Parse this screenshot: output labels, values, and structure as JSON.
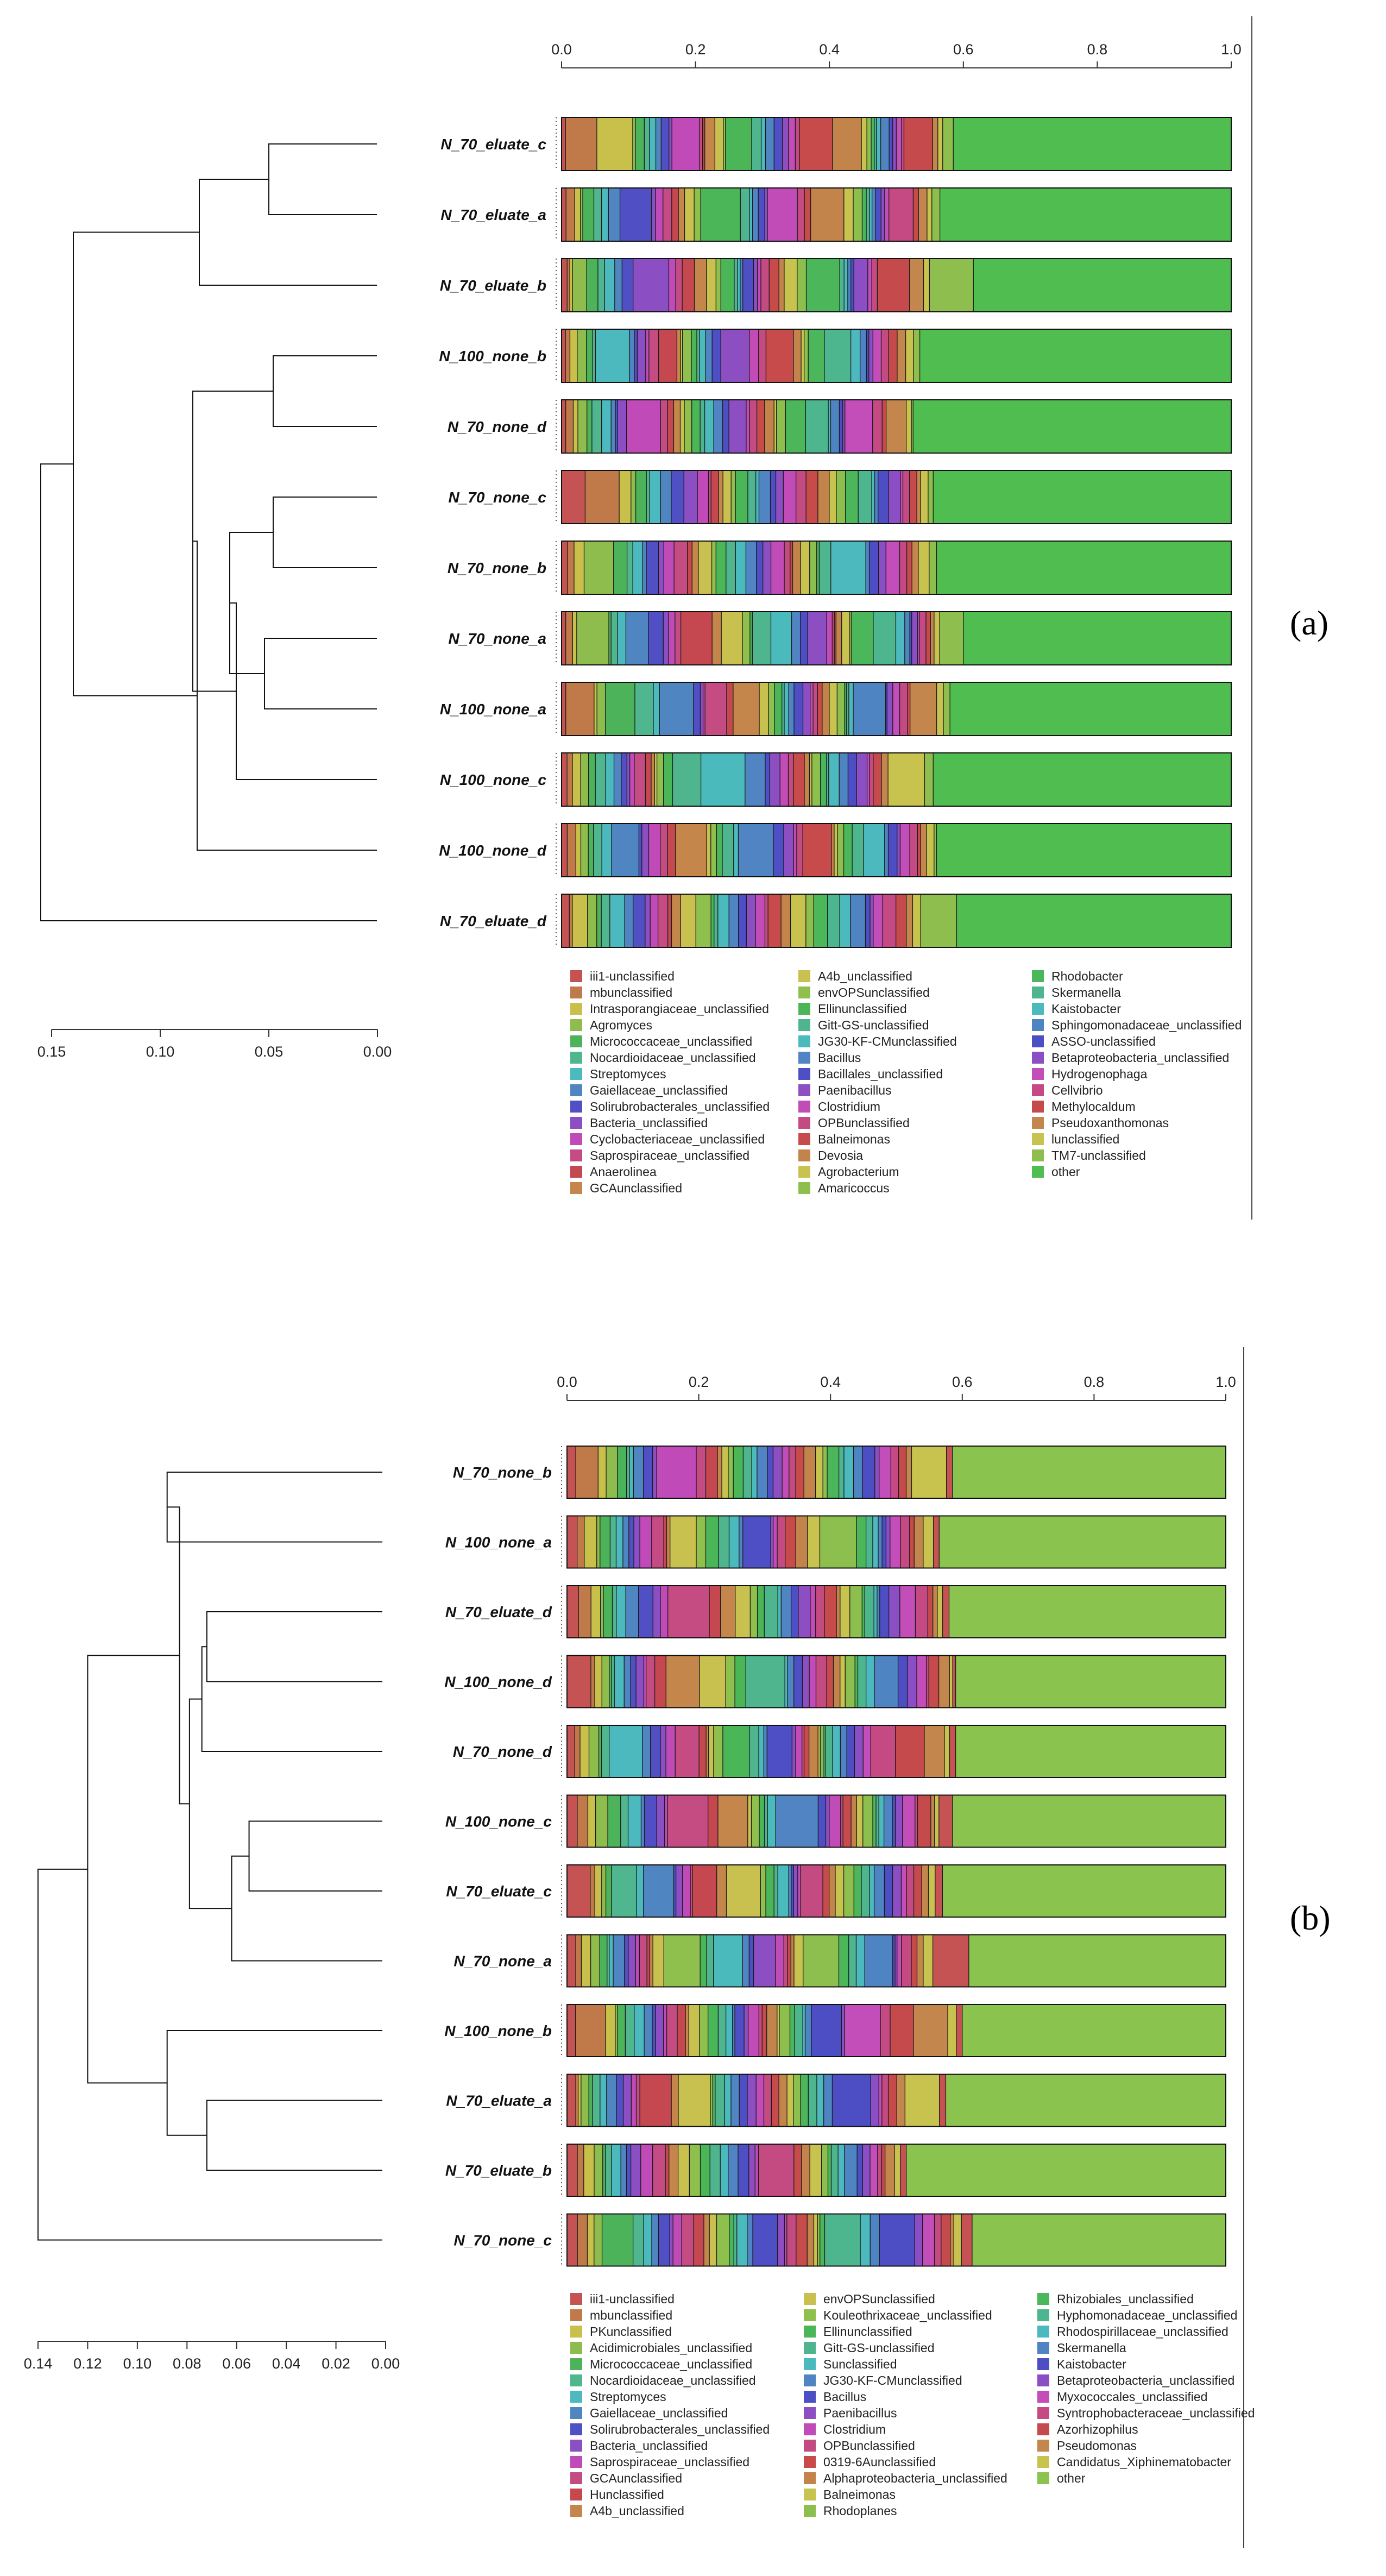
{
  "chart_data": [
    {
      "panel_label": "(a)",
      "type": "stacked-bar-with-dendrogram",
      "x_axis": {
        "range": [
          0,
          1
        ],
        "ticks": [
          "0.0",
          "0.2",
          "0.4",
          "0.6",
          "0.8",
          "1.0"
        ]
      },
      "dendrogram_axis": {
        "range": [
          0,
          0.155
        ],
        "ticks": [
          "0.15",
          "0.10",
          "0.05",
          "0.00"
        ]
      },
      "samples": [
        "N_70_eluate_c",
        "N_70_eluate_a",
        "N_70_eluate_b",
        "N_100_none_b",
        "N_70_none_d",
        "N_70_none_c",
        "N_70_none_b",
        "N_70_none_a",
        "N_100_none_a",
        "N_100_none_c",
        "N_100_none_d",
        "N_70_eluate_d"
      ],
      "other_start": [
        0.585,
        0.565,
        0.615,
        0.535,
        0.525,
        0.555,
        0.56,
        0.6,
        0.58,
        0.555,
        0.56,
        0.59
      ],
      "dendrogram": {
        "heights": [
          0.05,
          0.082,
          0.048,
          0.048,
          0.052,
          0.068,
          0.065,
          0.085,
          0.083,
          0.14,
          0.155
        ],
        "merges": [
          [
            0,
            1
          ],
          [
            -1,
            2
          ],
          [
            4,
            3
          ],
          [
            5,
            6
          ],
          [
            7,
            8
          ],
          [
            -4,
            -5
          ],
          [
            -6,
            9
          ],
          [
            -3,
            -7
          ],
          [
            -8,
            10
          ],
          [
            -2,
            -9
          ],
          [
            -10,
            11
          ]
        ]
      },
      "legend": [
        [
          "iii1-unclassified",
          "#c65353"
        ],
        [
          "mbunclassified",
          "#c07a4a"
        ],
        [
          "Intrasporangiaceae_unclassified",
          "#c8c04a"
        ],
        [
          "Agromyces",
          "#8ebd4e"
        ],
        [
          "Micrococcaceae_unclassified",
          "#4db35a"
        ],
        [
          "Nocardioidaceae_unclassified",
          "#4fb690"
        ],
        [
          "Streptomyces",
          "#4cb9bf"
        ],
        [
          "Gaiellaceae_unclassified",
          "#4f86c1"
        ],
        [
          "Solirubrobacterales_unclassified",
          "#5050c4"
        ],
        [
          "Bacteria_unclassified",
          "#8c4fc3"
        ],
        [
          "Cyclobacteriaceae_unclassified",
          "#c04bb8"
        ],
        [
          "Saprospiraceae_unclassified",
          "#c54b83"
        ],
        [
          "Anaerolinea",
          "#c5474f"
        ],
        [
          "GCAunclassified",
          "#c4864a"
        ],
        [
          "A4b_unclassified",
          "#c9c14f"
        ],
        [
          "envOPSunclassified",
          "#8fbf4d"
        ],
        [
          "Ellinunclassified",
          "#4bb658"
        ],
        [
          "Gitt-GS-unclassified",
          "#4fb58f"
        ],
        [
          "JG30-KF-CMunclassified",
          "#4bbabd"
        ],
        [
          "Bacillus",
          "#5084c2"
        ],
        [
          "Bacillales_unclassified",
          "#4e4fc5"
        ],
        [
          "Paenibacillus",
          "#8d4ec1"
        ],
        [
          "Clostridium",
          "#c14cb8"
        ],
        [
          "OPBunclassified",
          "#c44a82"
        ],
        [
          "Balneimonas",
          "#c84b4b"
        ],
        [
          "Devosia",
          "#c2844b"
        ],
        [
          "Agrobacterium",
          "#c8c24f"
        ],
        [
          "Amaricoccus",
          "#8dbf4f"
        ],
        [
          "Rhodobacter",
          "#4bb65a"
        ],
        [
          "Skermanella",
          "#4db68f"
        ],
        [
          "Kaistobacter",
          "#4cb9bf"
        ],
        [
          "Sphingomonadaceae_unclassified",
          "#4f84c3"
        ],
        [
          "ASSO-unclassified",
          "#4e4ec4"
        ],
        [
          "Betaproteobacteria_unclassified",
          "#8c4ec4"
        ],
        [
          "Hydrogenophaga",
          "#c34db9"
        ],
        [
          "Cellvibrio",
          "#c54a84"
        ],
        [
          "Methylocaldum",
          "#c54a4c"
        ],
        [
          "Pseudoxanthomonas",
          "#c3864c"
        ],
        [
          "lunclassified",
          "#c8c24f"
        ],
        [
          "TM7-unclassified",
          "#8ebf4e"
        ],
        [
          "other",
          "#4fbd4f"
        ]
      ]
    },
    {
      "panel_label": "(b)",
      "type": "stacked-bar-with-dendrogram",
      "x_axis": {
        "range": [
          0,
          1
        ],
        "ticks": [
          "0.0",
          "0.2",
          "0.4",
          "0.6",
          "0.8",
          "1.0"
        ]
      },
      "dendrogram_axis": {
        "range": [
          0,
          0.14
        ],
        "ticks": [
          "0.14",
          "0.12",
          "0.10",
          "0.08",
          "0.06",
          "0.04",
          "0.02",
          "0.00"
        ]
      },
      "samples": [
        "N_70_none_b",
        "N_100_none_a",
        "N_70_eluate_d",
        "N_100_none_d",
        "N_70_none_d",
        "N_100_none_c",
        "N_70_eluate_c",
        "N_70_none_a",
        "N_100_none_b",
        "N_70_eluate_a",
        "N_70_eluate_b",
        "N_70_none_c"
      ],
      "other_start": [
        0.585,
        0.565,
        0.58,
        0.59,
        0.59,
        0.585,
        0.57,
        0.61,
        0.6,
        0.575,
        0.515,
        0.615
      ],
      "dendrogram": {
        "heights": [
          0.088,
          0.072,
          0.074,
          0.055,
          0.062,
          0.079,
          0.083,
          0.072,
          0.088,
          0.12,
          0.14
        ],
        "merges": [
          [
            0,
            1
          ],
          [
            2,
            3
          ],
          [
            -2,
            4
          ],
          [
            5,
            6
          ],
          [
            -4,
            7
          ],
          [
            -3,
            -5
          ],
          [
            -1,
            -6
          ],
          [
            9,
            10
          ],
          [
            -8,
            8
          ],
          [
            -7,
            -9
          ],
          [
            -10,
            11
          ]
        ]
      },
      "legend": [
        [
          "iii1-unclassified",
          "#c65353"
        ],
        [
          "mbunclassified",
          "#c07a4a"
        ],
        [
          "PKunclassified",
          "#c8c04a"
        ],
        [
          "Acidimicrobiales_unclassified",
          "#8ebd4e"
        ],
        [
          "Micrococcaceae_unclassified",
          "#4db35a"
        ],
        [
          "Nocardioidaceae_unclassified",
          "#4fb690"
        ],
        [
          "Streptomyces",
          "#4cb9bf"
        ],
        [
          "Gaiellaceae_unclassified",
          "#4f86c1"
        ],
        [
          "Solirubrobacterales_unclassified",
          "#5050c4"
        ],
        [
          "Bacteria_unclassified",
          "#8c4fc3"
        ],
        [
          "Saprospiraceae_unclassified",
          "#c04bb8"
        ],
        [
          "GCAunclassified",
          "#c54b83"
        ],
        [
          "Hunclassified",
          "#c5474f"
        ],
        [
          "A4b_unclassified",
          "#c4864a"
        ],
        [
          "envOPSunclassified",
          "#c9c14f"
        ],
        [
          "Kouleothrixaceae_unclassified",
          "#8fbf4d"
        ],
        [
          "Ellinunclassified",
          "#4bb658"
        ],
        [
          "Gitt-GS-unclassified",
          "#4fb58f"
        ],
        [
          "Sunclassified",
          "#4bbabd"
        ],
        [
          "JG30-KF-CMunclassified",
          "#5084c2"
        ],
        [
          "Bacillus",
          "#4e4fc5"
        ],
        [
          "Paenibacillus",
          "#8d4ec1"
        ],
        [
          "Clostridium",
          "#c14cb8"
        ],
        [
          "OPBunclassified",
          "#c44a82"
        ],
        [
          "0319-6Aunclassified",
          "#c84b4b"
        ],
        [
          "Alphaproteobacteria_unclassified",
          "#c2844b"
        ],
        [
          "Balneimonas",
          "#c8c24f"
        ],
        [
          "Rhodoplanes",
          "#8dbf4f"
        ],
        [
          "Rhizobiales_unclassified",
          "#4bb65a"
        ],
        [
          "Hyphomonadaceae_unclassified",
          "#4db68f"
        ],
        [
          "Rhodospirillaceae_unclassified",
          "#4cb9bf"
        ],
        [
          "Skermanella",
          "#4f84c3"
        ],
        [
          "Kaistobacter",
          "#4e4ec4"
        ],
        [
          "Betaproteobacteria_unclassified",
          "#8c4ec4"
        ],
        [
          "Myxococcales_unclassified",
          "#c34db9"
        ],
        [
          "Syntrophobacteraceae_unclassified",
          "#c54a84"
        ],
        [
          "Azorhizophilus",
          "#c54a4c"
        ],
        [
          "Pseudomonas",
          "#c3864c"
        ],
        [
          "Candidatus_Xiphinematobacter",
          "#c8c24f"
        ],
        [
          "other",
          "#8bc34f"
        ]
      ]
    }
  ]
}
